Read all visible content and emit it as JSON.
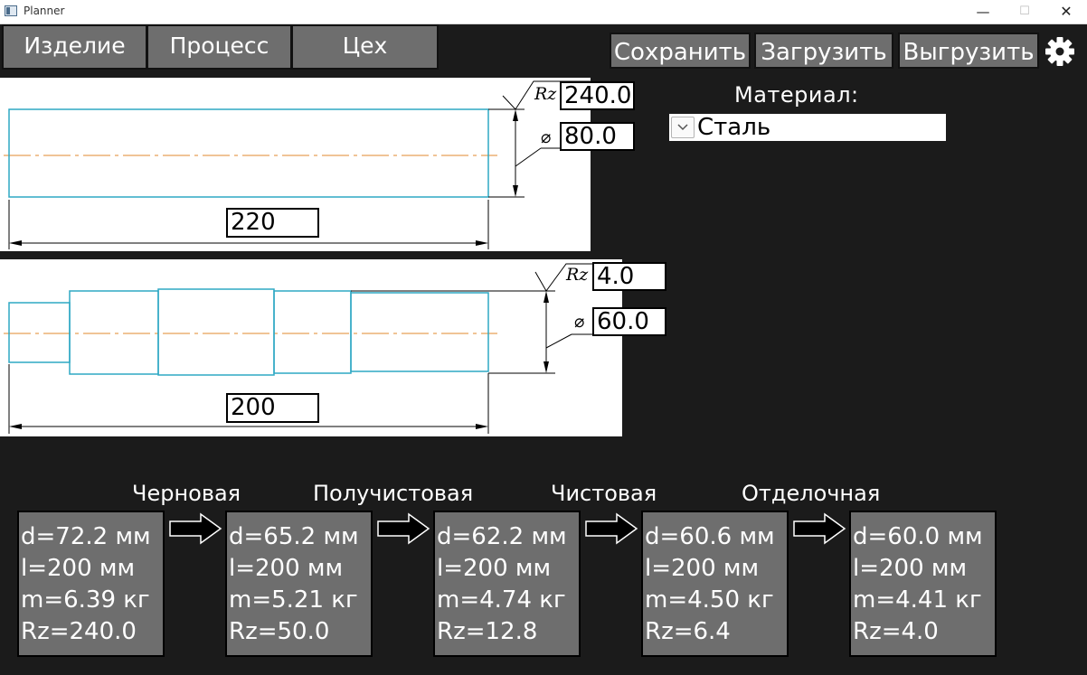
{
  "window": {
    "title": "Planner",
    "minimize_glyph": "—",
    "maximize_glyph": "☐",
    "close_glyph": "✕"
  },
  "tabs": [
    {
      "label": "Изделие"
    },
    {
      "label": "Процесс"
    },
    {
      "label": "Цех"
    }
  ],
  "toolbar": {
    "save_label": "Сохранить",
    "load_label": "Загрузить",
    "export_label": "Выгрузить",
    "settings_icon": "gear-icon"
  },
  "blank": {
    "rz_label": "Rz",
    "rz_value": "240.0",
    "diameter_symbol": "⌀",
    "diameter_value": "80.0",
    "length_value": "220"
  },
  "part": {
    "rz_label": "Rz",
    "rz_value": "4.0",
    "diameter_symbol": "⌀",
    "diameter_value": "60.0",
    "length_value": "200"
  },
  "material": {
    "label": "Материал:",
    "selected": "Сталь"
  },
  "stages": [
    {
      "title": "",
      "lines": [
        "d=72.2 мм",
        "l=200 мм",
        "m=6.39 кг",
        "Rz=240.0"
      ]
    },
    {
      "title": "Черновая",
      "lines": [
        "d=65.2 мм",
        "l=200 мм",
        "m=5.21 кг",
        "Rz=50.0"
      ]
    },
    {
      "title": "Получистовая",
      "lines": [
        "d=62.2 мм",
        "l=200 мм",
        "m=4.74 кг",
        "Rz=12.8"
      ]
    },
    {
      "title": "Чистовая",
      "lines": [
        "d=60.6 мм",
        "l=200 мм",
        "m=4.50 кг",
        "Rz=6.4"
      ]
    },
    {
      "title": "Отделочная",
      "lines": [
        "d=60.0 мм",
        "l=200 мм",
        "m=4.41 кг",
        "Rz=4.0"
      ]
    }
  ],
  "colors": {
    "background": "#1b1b1b",
    "button_gray": "#6e6e6e",
    "contour_cyan": "#2ea8c4",
    "axis_orange": "#e08a2c"
  }
}
